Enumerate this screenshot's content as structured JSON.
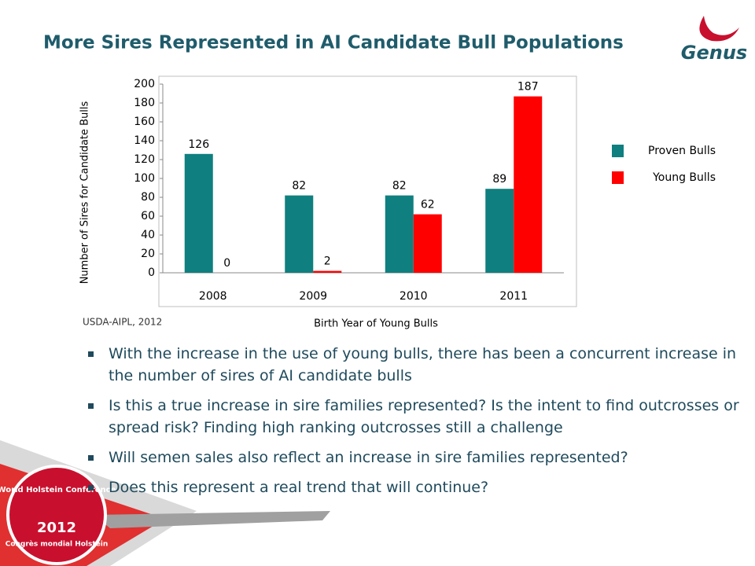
{
  "title": "More Sires Represented in AI Candidate Bull Populations",
  "logo": "Genus",
  "source": "USDA-AIPL, 2012",
  "badge": {
    "name": "World Holstein Conference",
    "year": "2012",
    "name_fr": "Congrès mondial Holstein"
  },
  "chart_data": {
    "type": "bar",
    "categories": [
      "2008",
      "2009",
      "2010",
      "2011"
    ],
    "series": [
      {
        "name": "Proven Bulls",
        "color": "#0f7f7f",
        "values": [
          126,
          82,
          82,
          89
        ]
      },
      {
        "name": "Young Bulls",
        "color": "#ff0000",
        "values": [
          0,
          2,
          62,
          187
        ]
      }
    ],
    "ylim": [
      0,
      200
    ],
    "yticks": [
      0,
      20,
      40,
      60,
      80,
      100,
      120,
      140,
      160,
      180,
      200
    ],
    "y_label": "Number of Sires for Candidate Bulls",
    "x_label": "Birth Year of Young Bulls",
    "legend": "right",
    "grid": false
  },
  "bullets": [
    "With the increase in the use of young bulls, there has been a concurrent increase in the number of sires of AI candidate bulls",
    "Is this a true increase in sire families represented?  Is the intent to find outcrosses or spread risk?  Finding high ranking outcrosses still a challenge",
    "Will semen sales also reflect an increase in sire families represented?",
    "Does this represent a real trend that will continue?"
  ]
}
